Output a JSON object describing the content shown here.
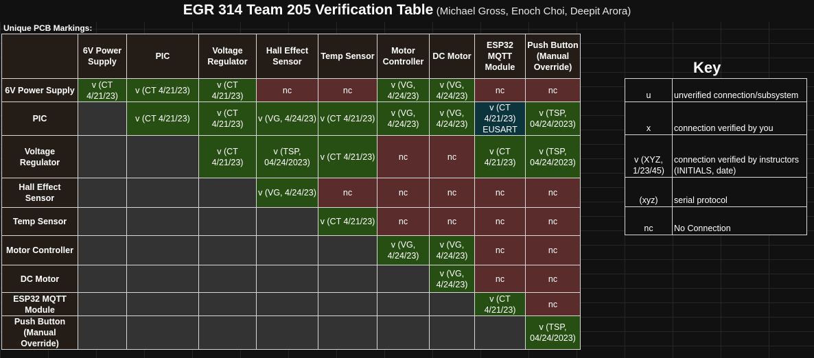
{
  "title": {
    "main": "EGR 314 Team 205 Verification Table",
    "authors": "(Michael Gross, Enoch Choi, Deepit Arora)"
  },
  "unique_label": "Unique PCB Markings:",
  "columns": [
    "6V Power Supply",
    "PIC",
    "Voltage Regulator",
    "Hall Effect Sensor",
    "Temp Sensor",
    "Motor Controller",
    "DC Motor",
    "ESP32 MQTT Module",
    "Push Button (Manual Override)"
  ],
  "rows": [
    {
      "label": "6V Power Supply",
      "cells": [
        {
          "text": "v (CT 4/21/23)",
          "status": "v"
        },
        {
          "text": "v (CT 4/21/23)",
          "status": "v"
        },
        {
          "text": "v (CT 4/21/23)",
          "status": "v"
        },
        {
          "text": "nc",
          "status": "nc"
        },
        {
          "text": "nc",
          "status": "nc"
        },
        {
          "text": "v (VG, 4/24/23)",
          "status": "v"
        },
        {
          "text": "v (VG, 4/24/23)",
          "status": "v"
        },
        {
          "text": "nc",
          "status": "nc"
        },
        {
          "text": "nc",
          "status": "nc"
        }
      ]
    },
    {
      "label": "PIC",
      "cells": [
        {
          "text": "",
          "status": "empty"
        },
        {
          "text": "v (CT 4/21/23)",
          "status": "v"
        },
        {
          "text": "v (CT 4/21/23)",
          "status": "v"
        },
        {
          "text": "v (VG, 4/24/23)",
          "status": "v"
        },
        {
          "text": "v (CT 4/21/23)",
          "status": "v"
        },
        {
          "text": "v (VG, 4/24/23)",
          "status": "v"
        },
        {
          "text": "v (VG, 4/24/23)",
          "status": "v"
        },
        {
          "text": "v (CT 4/21/23) EUSART",
          "status": "vblue"
        },
        {
          "text": "v (TSP, 04/24/2023)",
          "status": "v"
        }
      ]
    },
    {
      "label": "Voltage Regulator",
      "cells": [
        {
          "text": "",
          "status": "empty"
        },
        {
          "text": "",
          "status": "empty"
        },
        {
          "text": "v (CT 4/21/23)",
          "status": "v"
        },
        {
          "text": "v (TSP, 04/24/2023)",
          "status": "v"
        },
        {
          "text": "v (CT 4/21/23)",
          "status": "v"
        },
        {
          "text": "nc",
          "status": "nc"
        },
        {
          "text": "nc",
          "status": "nc"
        },
        {
          "text": "v (CT 4/21/23)",
          "status": "v"
        },
        {
          "text": "v (TSP, 04/24/2023)",
          "status": "v"
        }
      ]
    },
    {
      "label": "Hall Effect Sensor",
      "cells": [
        {
          "text": "",
          "status": "empty"
        },
        {
          "text": "",
          "status": "empty"
        },
        {
          "text": "",
          "status": "empty"
        },
        {
          "text": "v (VG, 4/24/23)",
          "status": "v"
        },
        {
          "text": "nc",
          "status": "nc"
        },
        {
          "text": "nc",
          "status": "nc"
        },
        {
          "text": "nc",
          "status": "nc"
        },
        {
          "text": "nc",
          "status": "nc"
        },
        {
          "text": "nc",
          "status": "nc"
        }
      ]
    },
    {
      "label": "Temp Sensor",
      "cells": [
        {
          "text": "",
          "status": "empty"
        },
        {
          "text": "",
          "status": "empty"
        },
        {
          "text": "",
          "status": "empty"
        },
        {
          "text": "",
          "status": "empty"
        },
        {
          "text": "v (CT 4/21/23)",
          "status": "v"
        },
        {
          "text": "nc",
          "status": "nc"
        },
        {
          "text": "nc",
          "status": "nc"
        },
        {
          "text": "nc",
          "status": "nc"
        },
        {
          "text": "nc",
          "status": "nc"
        }
      ]
    },
    {
      "label": "Motor Controller",
      "cells": [
        {
          "text": "",
          "status": "empty"
        },
        {
          "text": "",
          "status": "empty"
        },
        {
          "text": "",
          "status": "empty"
        },
        {
          "text": "",
          "status": "empty"
        },
        {
          "text": "",
          "status": "empty"
        },
        {
          "text": "v (VG, 4/24/23)",
          "status": "v"
        },
        {
          "text": "v (VG, 4/24/23)",
          "status": "v"
        },
        {
          "text": "nc",
          "status": "nc"
        },
        {
          "text": "nc",
          "status": "nc"
        }
      ]
    },
    {
      "label": "DC Motor",
      "cells": [
        {
          "text": "",
          "status": "empty"
        },
        {
          "text": "",
          "status": "empty"
        },
        {
          "text": "",
          "status": "empty"
        },
        {
          "text": "",
          "status": "empty"
        },
        {
          "text": "",
          "status": "empty"
        },
        {
          "text": "",
          "status": "empty"
        },
        {
          "text": "v (VG, 4/24/23)",
          "status": "v"
        },
        {
          "text": "nc",
          "status": "nc"
        },
        {
          "text": "nc",
          "status": "nc"
        }
      ]
    },
    {
      "label": "ESP32 MQTT Module",
      "cells": [
        {
          "text": "",
          "status": "empty"
        },
        {
          "text": "",
          "status": "empty"
        },
        {
          "text": "",
          "status": "empty"
        },
        {
          "text": "",
          "status": "empty"
        },
        {
          "text": "",
          "status": "empty"
        },
        {
          "text": "",
          "status": "empty"
        },
        {
          "text": "",
          "status": "empty"
        },
        {
          "text": "v (CT 4/21/23)",
          "status": "v"
        },
        {
          "text": "nc",
          "status": "nc"
        }
      ]
    },
    {
      "label": "Push Button (Manual Override)",
      "cells": [
        {
          "text": "",
          "status": "empty"
        },
        {
          "text": "",
          "status": "empty"
        },
        {
          "text": "",
          "status": "empty"
        },
        {
          "text": "",
          "status": "empty"
        },
        {
          "text": "",
          "status": "empty"
        },
        {
          "text": "",
          "status": "empty"
        },
        {
          "text": "",
          "status": "empty"
        },
        {
          "text": "",
          "status": "empty"
        },
        {
          "text": "v (TSP, 04/24/2023)",
          "status": "v"
        }
      ]
    }
  ],
  "key": {
    "title": "Key",
    "entries": [
      {
        "symbol": "u",
        "description": "unverified connection/subsystem"
      },
      {
        "symbol": "x",
        "description": "connection verified by you"
      },
      {
        "symbol": "v (XYZ, 1/23/45)",
        "description": "connection verified by instructors (INITIALS, date)"
      },
      {
        "symbol": "(xyz)",
        "description": "serial protocol"
      },
      {
        "symbol": "nc",
        "description": "No Connection"
      }
    ]
  },
  "colors": {
    "verified": "#274e13",
    "no_connection": "#5a2c2c",
    "serial": "#0c343d",
    "empty": "#333333",
    "header": "#241d17"
  }
}
